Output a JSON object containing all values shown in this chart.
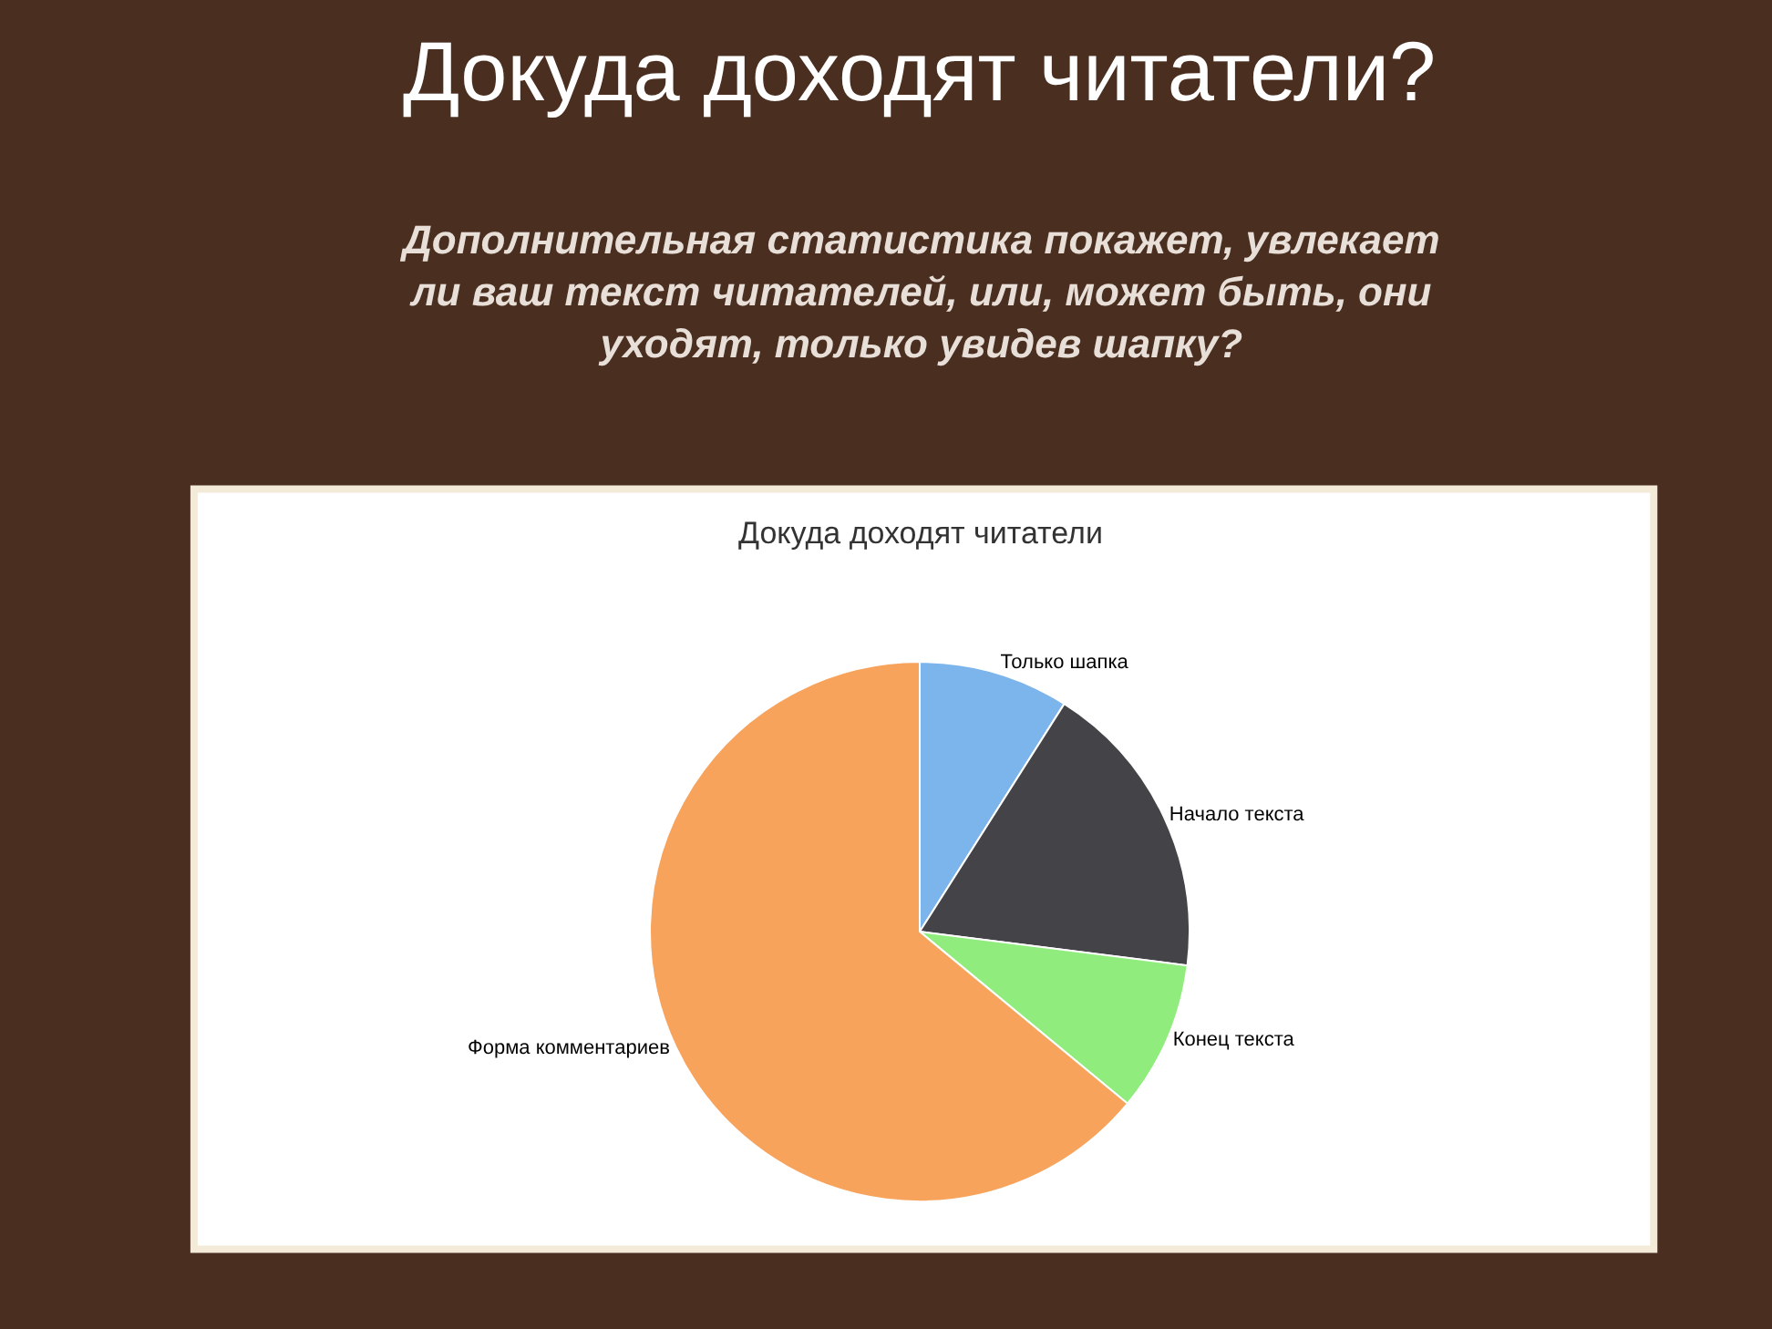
{
  "chart_data": {
    "type": "pie",
    "title": "Докуда доходят читатели?",
    "subtitle": "Дополнительная статистика покажет, увлекает\nли ваш текст читателей, или, может быть, они\nуходят, только увидев шапку?",
    "annotations": [
      "Докуда доходят читатели"
    ],
    "categories": [
      "Только шапка",
      "Начало текста",
      "Конец текста",
      "Форма комментариев"
    ],
    "values": [
      9,
      18,
      9,
      64
    ],
    "colors": [
      "#7cb5ec",
      "#434348",
      "#90ed7d",
      "#f7a35c"
    ],
    "legend": false
  }
}
